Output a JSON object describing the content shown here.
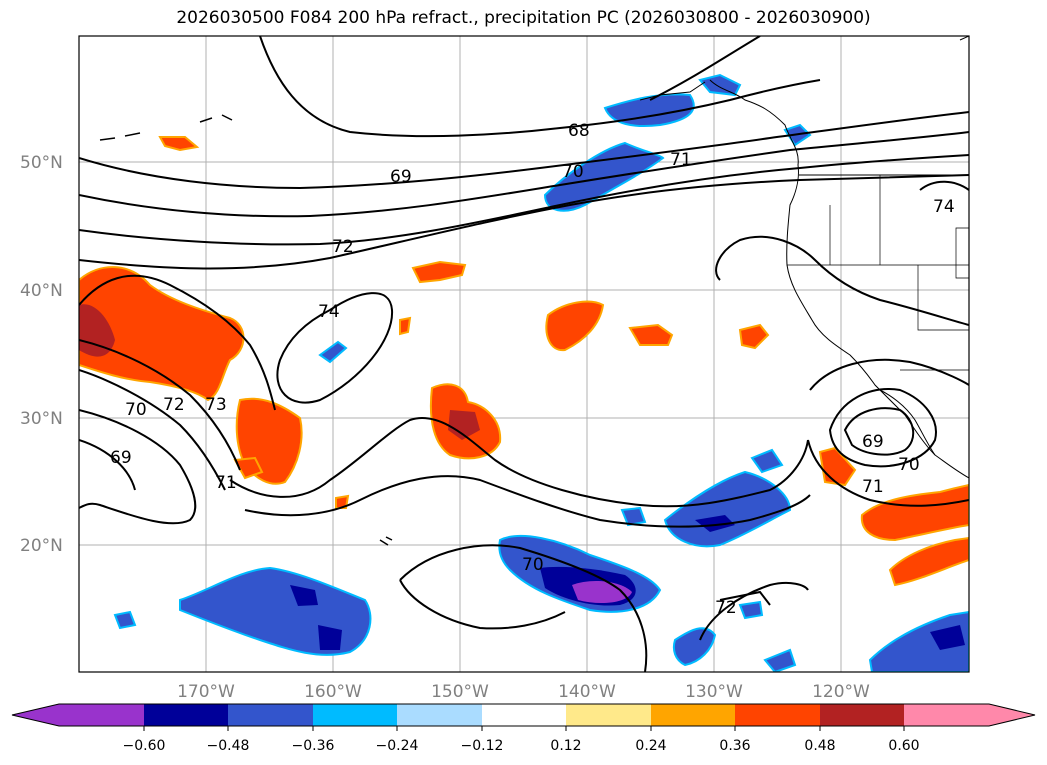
{
  "title": "2026030500 F084 200 hPa refract., precipitation PC (2026030800 - 2026030900)",
  "lat_ticks": [
    "50°N",
    "40°N",
    "30°N",
    "20°N"
  ],
  "lon_ticks": [
    "170°W",
    "160°W",
    "150°W",
    "140°W",
    "130°W",
    "120°W"
  ],
  "contour_labels": [
    "68",
    "69",
    "70",
    "71",
    "72",
    "74",
    "69",
    "70",
    "72",
    "73",
    "71",
    "69",
    "70",
    "71",
    "70",
    "72",
    "74"
  ],
  "colorbar": {
    "tick_labels": [
      "−0.60",
      "−0.48",
      "−0.36",
      "−0.24",
      "−0.12",
      "0.12",
      "0.24",
      "0.36",
      "0.48",
      "0.60"
    ],
    "colors": [
      "#9933cc",
      "#000099",
      "#3355cc",
      "#00bbff",
      "#aadcff",
      "#ffffff",
      "#ffe98a",
      "#ffa500",
      "#ff4400",
      "#b22222",
      "#ff88aa"
    ]
  },
  "colors": {
    "grid": "#b0b0b0",
    "contour": "#000000",
    "frame": "#000000"
  }
}
